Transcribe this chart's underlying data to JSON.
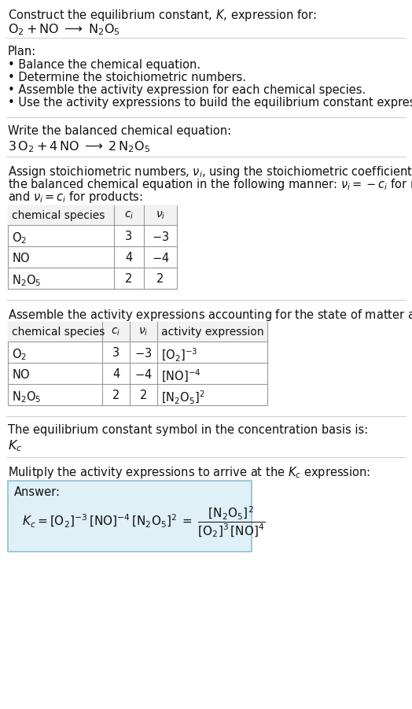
{
  "bg_color": "#ffffff",
  "title_line1": "Construct the equilibrium constant, $K$, expression for:",
  "title_line2": "$\\mathrm{O_2 + NO \\;\\longrightarrow\\; N_2O_5}$",
  "plan_header": "Plan:",
  "plan_items": [
    "• Balance the chemical equation.",
    "• Determine the stoichiometric numbers.",
    "• Assemble the activity expression for each chemical species.",
    "• Use the activity expressions to build the equilibrium constant expression."
  ],
  "balanced_header": "Write the balanced chemical equation:",
  "balanced_eq": "$\\mathrm{3\\,O_2 + 4\\,NO \\;\\longrightarrow\\; 2\\,N_2O_5}$",
  "assign_text_lines": [
    "Assign stoichiometric numbers, $\\nu_i$, using the stoichiometric coefficients, $c_i$, from",
    "the balanced chemical equation in the following manner: $\\nu_i = -c_i$ for reactants",
    "and $\\nu_i = c_i$ for products:"
  ],
  "table1_headers": [
    "chemical species",
    "$c_i$",
    "$\\nu_i$"
  ],
  "table1_rows": [
    [
      "$\\mathrm{O_2}$",
      "3",
      "$-3$"
    ],
    [
      "$\\mathrm{NO}$",
      "4",
      "$-4$"
    ],
    [
      "$\\mathrm{N_2O_5}$",
      "2",
      "2"
    ]
  ],
  "assemble_text": "Assemble the activity expressions accounting for the state of matter and $\\nu_i$:",
  "table2_headers": [
    "chemical species",
    "$c_i$",
    "$\\nu_i$",
    "activity expression"
  ],
  "table2_rows": [
    [
      "$\\mathrm{O_2}$",
      "3",
      "$-3$",
      "$[\\mathrm{O_2}]^{-3}$"
    ],
    [
      "$\\mathrm{NO}$",
      "4",
      "$-4$",
      "$[\\mathrm{NO}]^{-4}$"
    ],
    [
      "$\\mathrm{N_2O_5}$",
      "2",
      "2",
      "$[\\mathrm{N_2O_5}]^2$"
    ]
  ],
  "kc_text": "The equilibrium constant symbol in the concentration basis is:",
  "kc_symbol": "$K_c$",
  "multiply_text": "Mulitply the activity expressions to arrive at the $K_c$ expression:",
  "answer_box_color": "#dff0f7",
  "answer_border_color": "#90bfd0",
  "answer_label": "Answer:",
  "font_size": 10.5
}
